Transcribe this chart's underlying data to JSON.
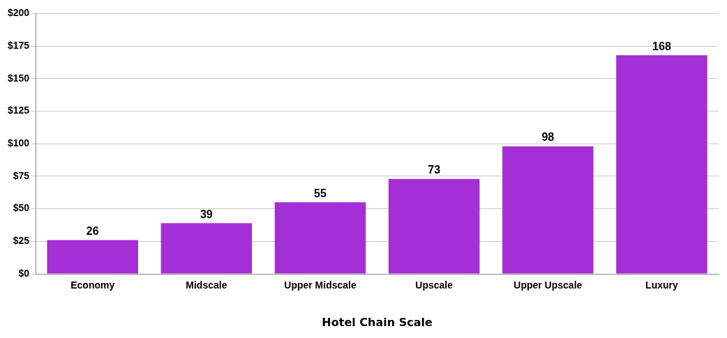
{
  "chart_data": {
    "type": "bar",
    "xlabel": "Hotel Chain Scale",
    "categories": [
      "Economy",
      "Midscale",
      "Upper Midscale",
      "Upscale",
      "Upper Upscale",
      "Luxury"
    ],
    "values": [
      26,
      39,
      55,
      73,
      98,
      168
    ],
    "color": "#a52fd6",
    "ylim": [
      0,
      200
    ],
    "yticks": [
      {
        "value": 0,
        "label": "$0"
      },
      {
        "value": 25,
        "label": "$25"
      },
      {
        "value": 50,
        "label": "$50"
      },
      {
        "value": 75,
        "label": "$75"
      },
      {
        "value": 100,
        "label": "$100"
      },
      {
        "value": 125,
        "label": "$125"
      },
      {
        "value": 150,
        "label": "$150"
      },
      {
        "value": 175,
        "label": "$175"
      },
      {
        "value": 200,
        "label": "$200"
      }
    ],
    "grid": "y",
    "data_labels": true,
    "legend": false
  }
}
